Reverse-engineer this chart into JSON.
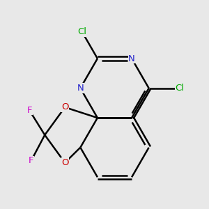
{
  "bg_color": "#e8e8e8",
  "bond_color": "#000000",
  "bond_width": 1.8,
  "atom_colors": {
    "N": "#2222cc",
    "O": "#cc0000",
    "F": "#cc00cc",
    "Cl": "#00aa00"
  },
  "BL": 1.0
}
